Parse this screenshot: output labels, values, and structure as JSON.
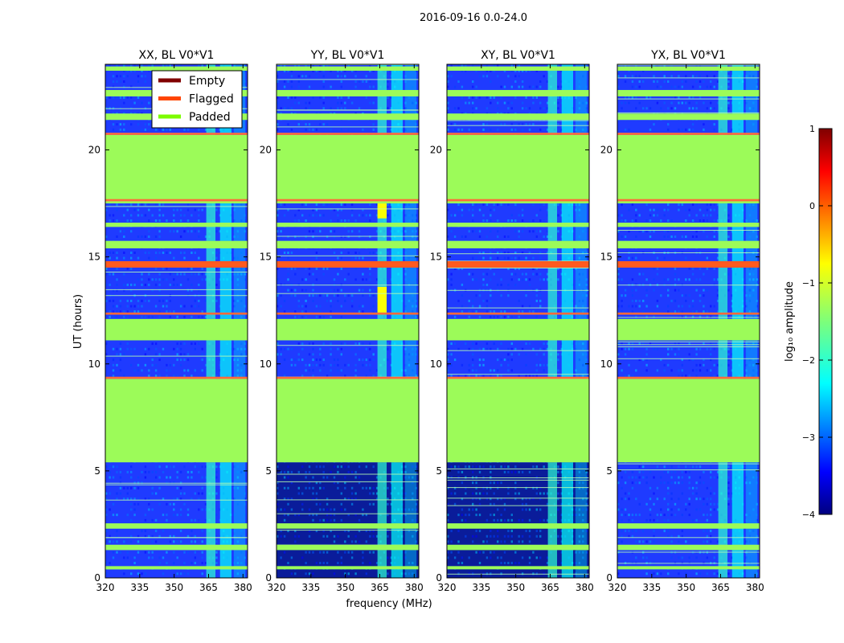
{
  "chart_data": {
    "type": "heatmap",
    "title": "2016-09-16 0.0-24.0",
    "xlabel": "frequency (MHz)",
    "ylabel": "UT (hours)",
    "xlim": [
      320,
      382
    ],
    "ylim": [
      0,
      24
    ],
    "xticks": [
      320,
      335,
      350,
      365,
      380
    ],
    "yticks": [
      0,
      5,
      10,
      15,
      20
    ],
    "panels": [
      {
        "title": "XX, BL V0*V1",
        "pol": "XX",
        "low_early": false
      },
      {
        "title": "YY, BL V0*V1",
        "pol": "YY",
        "low_early": true
      },
      {
        "title": "XY, BL V0*V1",
        "pol": "XY",
        "low_early": true
      },
      {
        "title": "YX, BL V0*V1",
        "pol": "YX",
        "low_early": false
      }
    ],
    "legend": {
      "location": "top-right of first panel",
      "entries": [
        {
          "label": "Empty",
          "color": "#800000"
        },
        {
          "label": "Flagged",
          "color": "#ff4500"
        },
        {
          "label": "Padded",
          "color": "#7cfc00"
        }
      ]
    },
    "colorbar": {
      "label": "log₁₀ amplitude",
      "min": -4,
      "max": 1,
      "ticks": [
        1,
        0,
        -1,
        -2,
        -3,
        -4
      ],
      "tick_labels": [
        "1",
        "0",
        "−1",
        "−2",
        "−3",
        "−4"
      ],
      "colormap": "jet"
    },
    "padded_ut_ranges": [
      [
        0.4,
        0.55
      ],
      [
        1.3,
        1.55
      ],
      [
        2.3,
        2.55
      ],
      [
        5.4,
        9.3
      ],
      [
        11.1,
        12.1
      ],
      [
        15.4,
        15.75
      ],
      [
        16.4,
        16.6
      ],
      [
        17.5,
        20.7
      ],
      [
        21.4,
        21.7
      ],
      [
        22.5,
        22.8
      ],
      [
        23.7,
        23.9
      ]
    ],
    "flagged_ut_ranges": [
      [
        9.3,
        9.4
      ],
      [
        14.5,
        14.8
      ],
      [
        12.3,
        12.4
      ],
      [
        17.6,
        17.7
      ],
      [
        20.7,
        20.8
      ]
    ],
    "rfi_frequency_bands_mhz": [
      [
        364,
        368
      ],
      [
        370,
        375
      ],
      [
        376,
        381
      ]
    ]
  }
}
